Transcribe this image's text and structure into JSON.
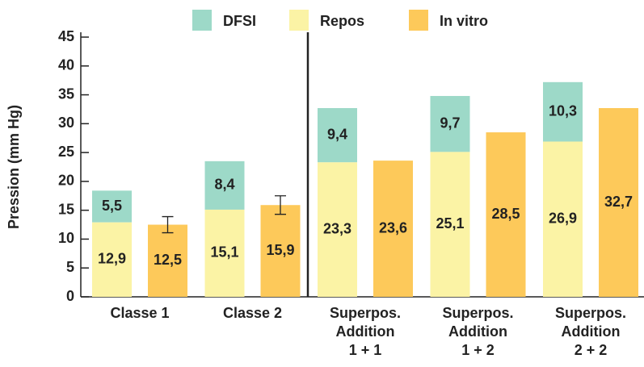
{
  "chart_data": {
    "type": "bar",
    "y_label": "Pression (mm Hg)",
    "categories": [
      [
        "Classe 1"
      ],
      [
        "Classe 2"
      ],
      [
        "Superpos.",
        "Addition",
        "1 + 1"
      ],
      [
        "Superpos.",
        "Addition",
        "1 + 2"
      ],
      [
        "Superpos.",
        "Addition",
        "2 + 2"
      ]
    ],
    "series": [
      {
        "name": "DFSI",
        "color": "#9dd9c8",
        "stack_on": "Repos",
        "values": [
          5.5,
          8.4,
          9.4,
          9.7,
          10.3
        ],
        "value_labels": [
          "5,5",
          "8,4",
          "9,4",
          "9,7",
          "10,3"
        ]
      },
      {
        "name": "Repos",
        "color": "#fbf3a5",
        "values": [
          12.9,
          15.1,
          23.3,
          25.1,
          26.9
        ],
        "value_labels": [
          "12,9",
          "15,1",
          "23,3",
          "25,1",
          "26,9"
        ]
      },
      {
        "name": "In vitro",
        "color": "#fdc95a",
        "values": [
          12.5,
          15.9,
          23.6,
          28.5,
          32.7
        ],
        "value_labels": [
          "12,5",
          "15,9",
          "23,6",
          "28,5",
          "32,7"
        ],
        "errors": [
          1.4,
          1.6,
          null,
          null,
          null
        ]
      }
    ],
    "ylim": [
      0,
      45
    ],
    "yticks": [
      0,
      5,
      10,
      15,
      20,
      25,
      30,
      35,
      40,
      45
    ]
  }
}
